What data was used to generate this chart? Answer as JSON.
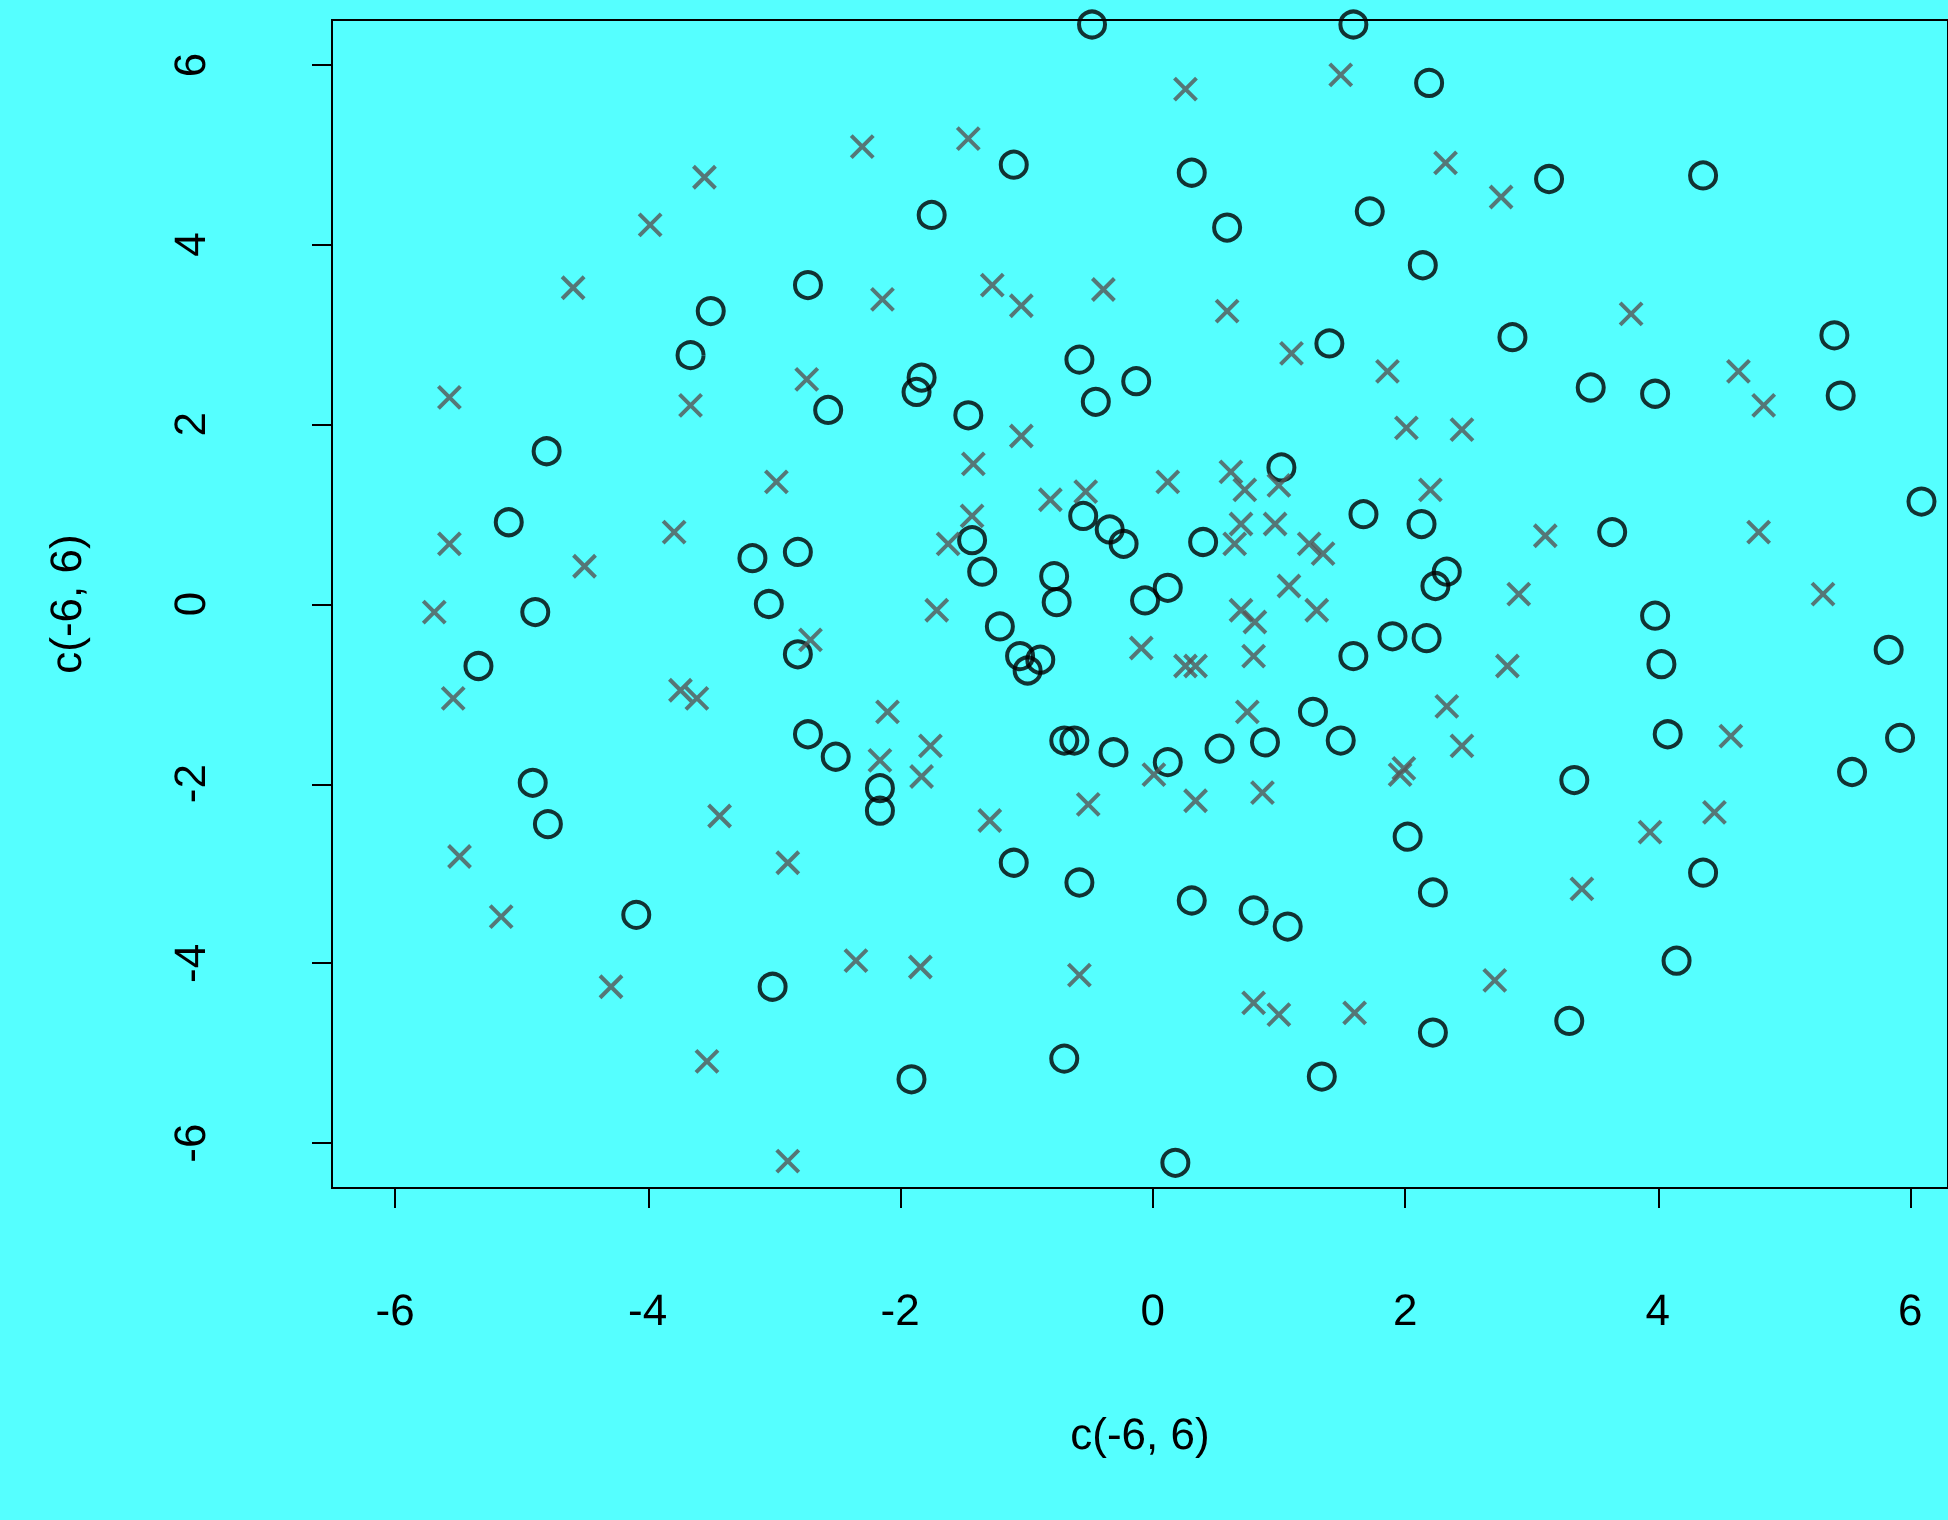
{
  "chart_data": {
    "type": "scatter",
    "xlabel": "c(-6, 6)",
    "ylabel": "c(-6, 6)",
    "xlim": [
      -6.5,
      6.3
    ],
    "ylim": [
      -6.5,
      6.5
    ],
    "xticks": [
      -6,
      -4,
      -2,
      0,
      2,
      4,
      6
    ],
    "yticks": [
      -6,
      -4,
      -2,
      0,
      2,
      4,
      6
    ],
    "grid": false,
    "series": [
      {
        "color": "#000000",
        "marker": "circle",
        "x": [
          -0.48,
          1.59,
          2.19,
          -1.1,
          0.31,
          -1.75,
          0.59,
          1.72,
          3.14,
          4.36,
          2.14,
          -2.73,
          -3.5,
          -3.66,
          1.4,
          2.85,
          5.4,
          -0.58,
          -0.13,
          -1.83,
          -1.87,
          -2.57,
          -1.46,
          -0.45,
          3.47,
          3.98,
          5.45,
          -4.8,
          1.02,
          6.09,
          -5.1,
          -0.55,
          1.67,
          2.13,
          -3.17,
          -2.81,
          -1.43,
          -0.34,
          -0.23,
          0.4,
          3.64,
          -1.35,
          -0.78,
          2.33,
          2.24,
          -3.04,
          -4.89,
          -0.76,
          -0.06,
          0.12,
          3.98,
          -5.34,
          -1.21,
          -2.81,
          -1.05,
          -0.89,
          -0.99,
          1.59,
          1.9,
          2.17,
          4.03,
          5.83,
          -2.73,
          -2.51,
          -0.7,
          -0.62,
          -0.31,
          0.12,
          0.53,
          0.89,
          1.27,
          1.49,
          4.08,
          5.92,
          5.54,
          3.34,
          -4.91,
          -4.79,
          -2.16,
          -2.16,
          2.02,
          -1.1,
          -0.58,
          2.22,
          0.31,
          0.8,
          1.07,
          4.36,
          -4.09,
          4.15,
          -3.01,
          3.3,
          2.22,
          -0.7,
          -1.91,
          1.34,
          0.18
        ],
        "values": [
          6.45,
          6.45,
          5.8,
          4.89,
          4.8,
          4.33,
          4.19,
          4.37,
          4.73,
          4.77,
          3.77,
          3.55,
          3.26,
          2.77,
          2.9,
          2.97,
          2.99,
          2.72,
          2.48,
          2.52,
          2.36,
          2.16,
          2.1,
          2.25,
          2.41,
          2.34,
          2.32,
          1.7,
          1.52,
          1.14,
          0.91,
          0.98,
          1.0,
          0.89,
          0.51,
          0.58,
          0.71,
          0.83,
          0.67,
          0.69,
          0.8,
          0.36,
          0.31,
          0.36,
          0.2,
          0.0,
          -0.09,
          0.02,
          0.04,
          0.18,
          -0.13,
          -0.69,
          -0.25,
          -0.56,
          -0.58,
          -0.62,
          -0.74,
          -0.58,
          -0.36,
          -0.38,
          -0.67,
          -0.51,
          -1.45,
          -1.7,
          -1.52,
          -1.52,
          -1.65,
          -1.76,
          -1.61,
          -1.54,
          -1.2,
          -1.52,
          -1.45,
          -1.49,
          -1.87,
          -1.96,
          -1.99,
          -2.45,
          -2.05,
          -2.3,
          -2.59,
          -2.88,
          -3.1,
          -3.21,
          -3.3,
          -3.41,
          -3.59,
          -2.99,
          -3.46,
          -3.97,
          -4.26,
          -4.64,
          -4.77,
          -5.06,
          -5.29,
          -5.26,
          -6.22
        ]
      },
      {
        "color": "#555555",
        "marker": "cross",
        "x": [
          0.26,
          1.49,
          -2.3,
          -1.46,
          -3.55,
          -3.98,
          2.32,
          2.76,
          -4.59,
          -2.14,
          -1.27,
          -1.04,
          -0.39,
          0.59,
          3.79,
          1.1,
          1.86,
          4.64,
          4.84,
          -5.57,
          -2.74,
          -3.66,
          2.01,
          2.45,
          -1.04,
          -1.42,
          0.62,
          -2.98,
          -0.81,
          -0.53,
          0.12,
          0.73,
          1.0,
          2.2,
          -1.43,
          0.7,
          0.97,
          -5.57,
          -4.5,
          -3.79,
          -1.62,
          0.65,
          1.24,
          1.35,
          3.11,
          4.8,
          -5.69,
          -1.71,
          0.7,
          1.08,
          1.3,
          2.9,
          5.31,
          -2.71,
          -0.09,
          0.26,
          0.34,
          0.81,
          0.8,
          2.81,
          -5.54,
          -3.74,
          -3.61,
          -2.1,
          0.75,
          2.33,
          2.45,
          4.58,
          -2.16,
          -1.76,
          -1.83,
          0.01,
          1.99,
          0.87,
          1.96,
          0.34,
          -0.51,
          -3.43,
          -1.29,
          3.94,
          4.45,
          -5.49,
          -2.89,
          3.4,
          -5.16,
          -2.35,
          -1.84,
          -0.58,
          -4.29,
          0.8,
          1.0,
          1.6,
          2.71,
          -3.53,
          -2.89
        ],
        "values": [
          5.73,
          5.89,
          5.09,
          5.18,
          4.75,
          4.22,
          4.91,
          4.53,
          3.52,
          3.39,
          3.55,
          3.32,
          3.5,
          3.26,
          3.23,
          2.79,
          2.59,
          2.59,
          2.21,
          2.3,
          2.5,
          2.21,
          1.96,
          1.94,
          1.87,
          1.56,
          1.47,
          1.36,
          1.16,
          1.25,
          1.36,
          1.27,
          1.32,
          1.27,
          0.98,
          0.89,
          0.89,
          0.67,
          0.42,
          0.8,
          0.67,
          0.67,
          0.67,
          0.56,
          0.76,
          0.8,
          -0.09,
          -0.07,
          -0.07,
          0.2,
          -0.07,
          0.11,
          0.11,
          -0.4,
          -0.49,
          -0.69,
          -0.69,
          -0.2,
          -0.58,
          -0.69,
          -1.05,
          -0.96,
          -1.05,
          -1.2,
          -1.2,
          -1.14,
          -1.58,
          -1.47,
          -1.74,
          -1.58,
          -1.92,
          -1.9,
          -1.83,
          -2.1,
          -1.9,
          -2.19,
          -2.23,
          -2.36,
          -2.41,
          -2.54,
          -2.32,
          -2.81,
          -2.88,
          -3.17,
          -3.48,
          -3.97,
          -4.04,
          -4.13,
          -4.26,
          -4.44,
          -4.57,
          -4.55,
          -4.19,
          -5.09,
          -6.2
        ]
      }
    ]
  }
}
